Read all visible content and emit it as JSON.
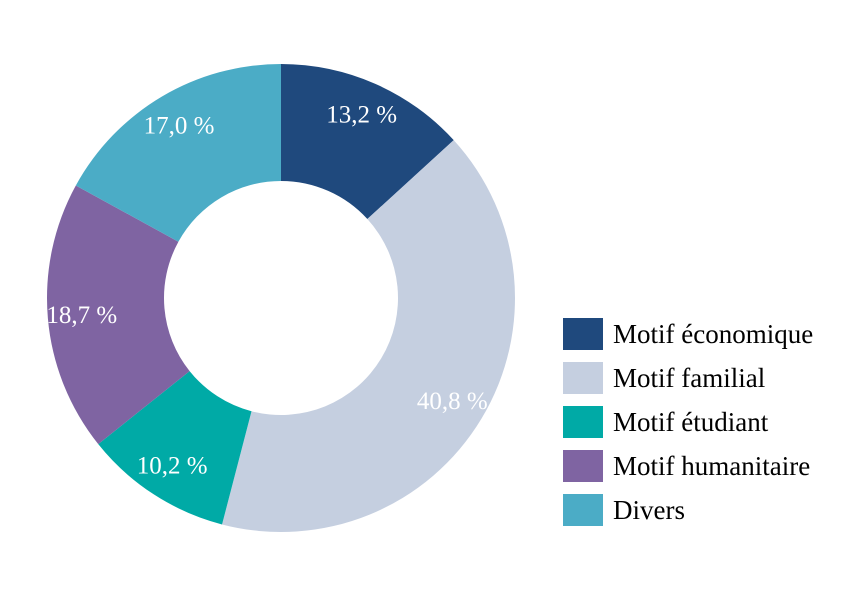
{
  "chart_data": {
    "type": "pie",
    "donut": true,
    "slices": [
      {
        "label": "Motif économique",
        "value": 13.2,
        "value_label": "13,2 %",
        "color": "#1f497d"
      },
      {
        "label": "Motif familial",
        "value": 40.8,
        "value_label": "40,8 %",
        "color": "#c5cfe0"
      },
      {
        "label": "Motif étudiant",
        "value": 10.2,
        "value_label": "10,2 %",
        "color": "#00aaa6"
      },
      {
        "label": "Motif humanitaire",
        "value": 18.7,
        "value_label": "18,7 %",
        "color": "#7f64a2"
      },
      {
        "label": "Divers",
        "value": 17.0,
        "value_label": "17,0 %",
        "color": "#4bacc6"
      }
    ],
    "start_angle": "12 o'clock",
    "direction": "clockwise",
    "legend_position": "right"
  }
}
